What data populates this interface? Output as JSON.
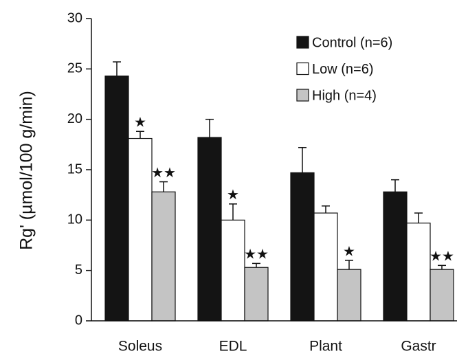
{
  "chart_data": {
    "type": "bar",
    "y_label": "Rg' (µmol/100 g/min)",
    "categories": [
      "Soleus",
      "EDL",
      "Plant",
      "Gastr"
    ],
    "series": [
      {
        "name": "Control (n=6)",
        "color": "#141414",
        "values": [
          24.3,
          18.2,
          14.7,
          12.8
        ],
        "errors": [
          1.4,
          1.8,
          2.5,
          1.2
        ],
        "labels": [
          null,
          null,
          null,
          null
        ]
      },
      {
        "name": "Low (n=6)",
        "color": "#ffffff",
        "values": [
          18.1,
          10.0,
          10.7,
          9.7
        ],
        "errors": [
          0.7,
          1.6,
          0.7,
          1.0
        ],
        "labels": [
          "★",
          "★",
          null,
          null
        ]
      },
      {
        "name": "High (n=4)",
        "color": "#c4c4c4",
        "values": [
          12.8,
          5.3,
          5.1,
          5.1
        ],
        "errors": [
          1.0,
          0.4,
          0.9,
          0.4
        ],
        "labels": [
          "★★",
          "★★",
          "★",
          "★★"
        ]
      }
    ],
    "ylim": [
      0,
      30
    ],
    "yticks": [
      0,
      5,
      10,
      15,
      20,
      25,
      30
    ],
    "legend": "upper right"
  }
}
